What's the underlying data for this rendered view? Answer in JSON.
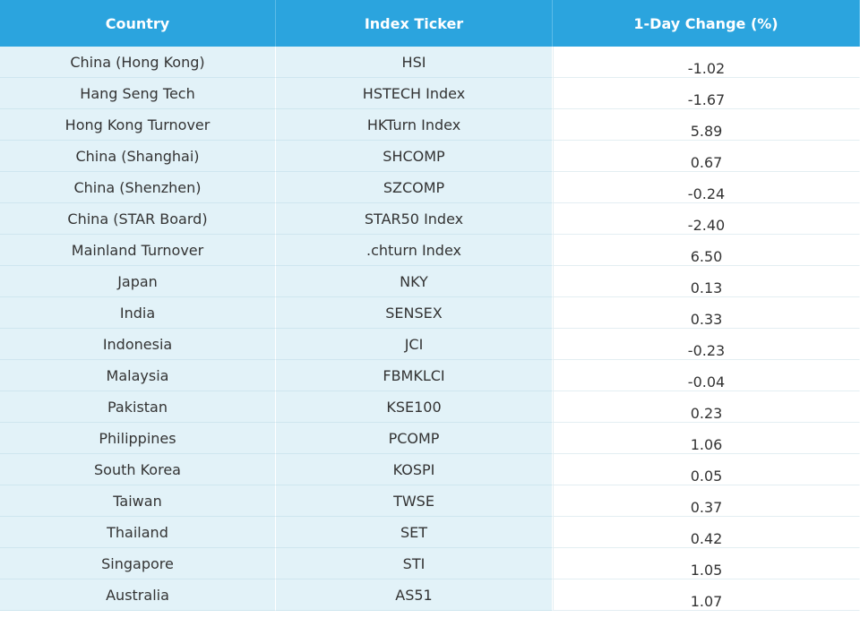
{
  "table": {
    "header": [
      "Country",
      "Index Ticker",
      "1-Day Change (%)"
    ],
    "rows": [
      [
        "China (Hong Kong)",
        "HSI",
        "-1.02"
      ],
      [
        "Hang Seng Tech",
        "HSTECH Index",
        "-1.67"
      ],
      [
        "Hong Kong Turnover",
        "HKTurn Index",
        "5.89"
      ],
      [
        "China (Shanghai)",
        "SHCOMP",
        "0.67"
      ],
      [
        "China (Shenzhen)",
        "SZCOMP",
        "-0.24"
      ],
      [
        "China (STAR Board)",
        "STAR50 Index",
        "-2.40"
      ],
      [
        "Mainland Turnover",
        ".chturn Index",
        "6.50"
      ],
      [
        "Japan",
        "NKY",
        "0.13"
      ],
      [
        "India",
        "SENSEX",
        "0.33"
      ],
      [
        "Indonesia",
        "JCI",
        "-0.23"
      ],
      [
        "Malaysia",
        "FBMKLCI",
        "-0.04"
      ],
      [
        "Pakistan",
        "KSE100",
        "0.23"
      ],
      [
        "Philippines",
        "PCOMP",
        "1.06"
      ],
      [
        "South Korea",
        "KOSPI",
        "0.05"
      ],
      [
        "Taiwan",
        "TWSE",
        "0.37"
      ],
      [
        "Thailand",
        "SET",
        "0.42"
      ],
      [
        "Singapore",
        "STI",
        "1.05"
      ],
      [
        "Australia",
        "AS51",
        "1.07"
      ]
    ]
  }
}
